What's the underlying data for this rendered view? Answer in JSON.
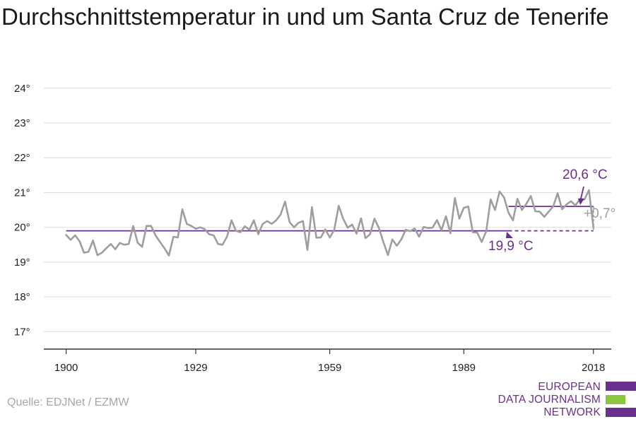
{
  "title": "Durchschnittstemperatur in und um Santa Cruz de Tenerife",
  "source": "Quelle: EDJNet / EZMW",
  "logo": {
    "lines": [
      "EUROPEAN",
      "DATA JOURNALISM",
      "NETWORK"
    ],
    "colors": {
      "purple": "#6b2f8e",
      "green": "#8cc63f"
    }
  },
  "chart_data": {
    "type": "line",
    "x_ticks": [
      "1900",
      "1929",
      "1959",
      "1989",
      "2018"
    ],
    "y_ticks": [
      "17°",
      "18°",
      "19°",
      "20°",
      "21°",
      "22°",
      "23°",
      "24°"
    ],
    "ylim": [
      16.5,
      24.3
    ],
    "xlim": [
      1895,
      2022
    ],
    "grid": "horizontal",
    "series": [
      {
        "color": "#9e9e9e",
        "x_start": 1900,
        "values": [
          19.78,
          19.64,
          19.77,
          19.6,
          19.27,
          19.3,
          19.62,
          19.2,
          19.27,
          19.4,
          19.52,
          19.37,
          19.55,
          19.5,
          19.52,
          20.04,
          19.56,
          19.44,
          20.04,
          20.04,
          19.77,
          19.58,
          19.4,
          19.19,
          19.73,
          19.71,
          20.52,
          20.1,
          20.04,
          19.96,
          20.0,
          19.95,
          19.8,
          19.77,
          19.52,
          19.5,
          19.73,
          20.2,
          19.9,
          19.86,
          20.03,
          19.93,
          20.2,
          19.8,
          20.1,
          20.18,
          20.1,
          20.2,
          20.37,
          20.74,
          20.15,
          20.0,
          20.13,
          20.18,
          19.35,
          20.58,
          19.7,
          19.71,
          19.94,
          19.71,
          19.93,
          20.62,
          20.25,
          19.99,
          20.08,
          19.82,
          20.26,
          19.69,
          19.8,
          20.25,
          19.98,
          19.58,
          19.2,
          19.65,
          19.47,
          19.65,
          19.93,
          19.89,
          19.97,
          19.73,
          20.01,
          19.98,
          19.99,
          20.21,
          19.92,
          20.32,
          19.83,
          20.84,
          20.25,
          20.56,
          20.6,
          19.86,
          19.85,
          19.58,
          19.88,
          20.8,
          20.5,
          21.03,
          20.86,
          20.42,
          20.2,
          20.82,
          20.5,
          20.68,
          20.9,
          20.46,
          20.45,
          20.3,
          20.45,
          20.6,
          20.98,
          20.52,
          20.66,
          20.75,
          20.63,
          20.82,
          20.8,
          21.07,
          20.0
        ]
      }
    ],
    "reference_lines": [
      {
        "from": 1900,
        "to": 1999,
        "value": 19.9,
        "color": "#6b2f8e",
        "style": "solid"
      },
      {
        "from": 1999,
        "to": 2018,
        "value": 19.9,
        "color": "#6b2f8e",
        "style": "dashed"
      },
      {
        "from": 1999,
        "to": 2018,
        "value": 20.6,
        "color": "#6b2f8e",
        "style": "solid"
      }
    ],
    "annotations": [
      {
        "text": "20,6 °C",
        "color": "#6b2f8e"
      },
      {
        "text": "19,9 °C",
        "color": "#6b2f8e"
      },
      {
        "text": "+0,7°",
        "color": "#9e9e9e"
      }
    ]
  }
}
